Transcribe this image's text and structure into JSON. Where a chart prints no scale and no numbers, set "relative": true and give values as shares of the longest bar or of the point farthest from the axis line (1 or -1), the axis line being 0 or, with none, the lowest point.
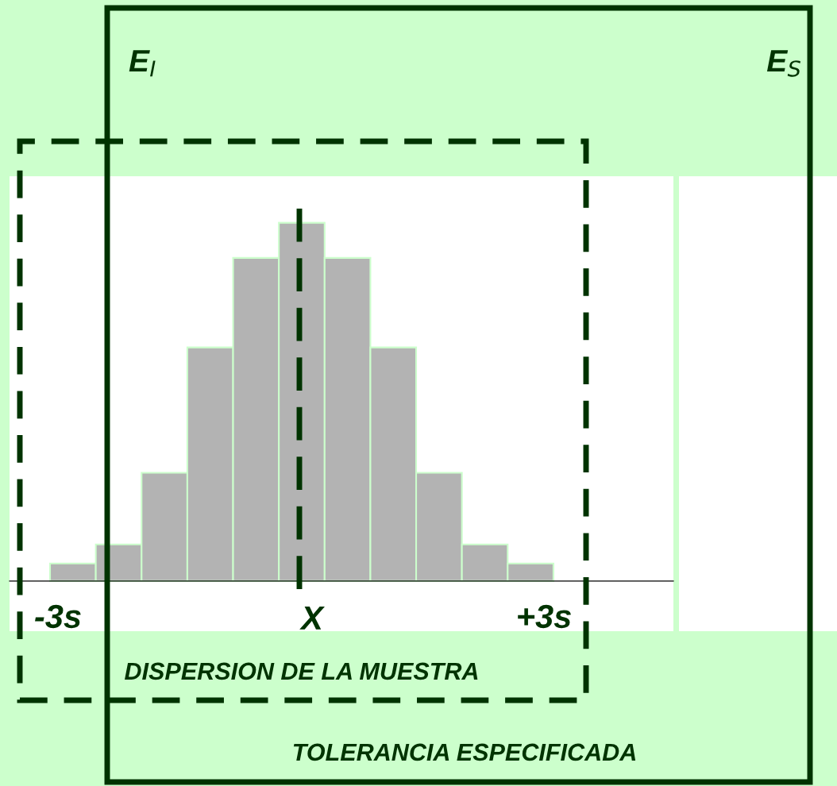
{
  "chart_data": {
    "type": "bar",
    "relative": true,
    "categories": [
      null,
      null,
      null,
      null,
      null,
      null,
      null,
      null,
      null,
      null,
      null
    ],
    "values": [
      0.049,
      0.102,
      0.302,
      0.652,
      0.902,
      1,
      0.902,
      0.652,
      0.302,
      0.102,
      0.049
    ],
    "color": "#b3b3b3",
    "annotations": [
      "E$_{I}$",
      "E$_{S}$",
      "-3s",
      "X",
      "+3s",
      "DISPERSION DE LA MUESTRA",
      "TOLERANCIA ESPECIFICADA"
    ]
  }
}
